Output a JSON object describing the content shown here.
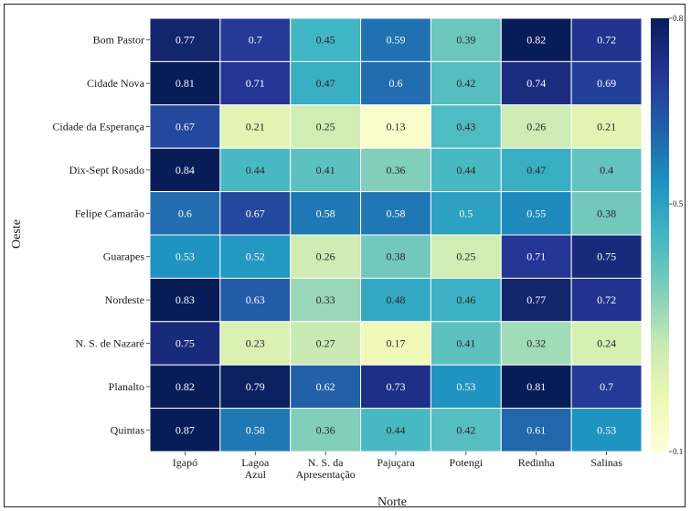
{
  "chart_data": {
    "type": "heatmap",
    "xlabel": "Norte",
    "ylabel": "Oeste",
    "columns": [
      "Igapó",
      "Lagoa Azul",
      "N. S. da Apresentação",
      "Pajuçara",
      "Potengi",
      "Redinha",
      "Salinas"
    ],
    "column_label_lines": [
      [
        "Igapó"
      ],
      [
        "Lagoa",
        "Azul"
      ],
      [
        "N. S. da",
        "Apresentação"
      ],
      [
        "Pajuçara"
      ],
      [
        "Potengi"
      ],
      [
        "Redinha"
      ],
      [
        "Salinas"
      ]
    ],
    "rows": [
      "Bom Pastor",
      "Cidade Nova",
      "Cidade da Esperança",
      "Dix-Sept Rosado",
      "Felipe Camarão",
      "Guarapes",
      "Nordeste",
      "N. S. de Nazaré",
      "Planalto",
      "Quintas"
    ],
    "values": [
      [
        "0.77",
        "0.7",
        "0.45",
        "0.59",
        "0.39",
        "0.82",
        "0.72"
      ],
      [
        "0.81",
        "0.71",
        "0.47",
        "0.6",
        "0.42",
        "0.74",
        "0.69"
      ],
      [
        "0.67",
        "0.21",
        "0.25",
        "0.13",
        "0.43",
        "0.26",
        "0.21"
      ],
      [
        "0.84",
        "0.44",
        "0.41",
        "0.36",
        "0.44",
        "0.47",
        "0.4"
      ],
      [
        "0.6",
        "0.67",
        "0.58",
        "0.58",
        "0.5",
        "0.55",
        "0.38"
      ],
      [
        "0.53",
        "0.52",
        "0.26",
        "0.38",
        "0.25",
        "0.71",
        "0.75"
      ],
      [
        "0.83",
        "0.63",
        "0.33",
        "0.48",
        "0.46",
        "0.77",
        "0.72"
      ],
      [
        "0.75",
        "0.23",
        "0.27",
        "0.17",
        "0.41",
        "0.32",
        "0.24"
      ],
      [
        "0.82",
        "0.79",
        "0.62",
        "0.73",
        "0.53",
        "0.81",
        "0.7"
      ],
      [
        "0.87",
        "0.58",
        "0.36",
        "0.44",
        "0.42",
        "0.61",
        "0.53"
      ]
    ],
    "colormap": "YlGnBu",
    "colorbar": {
      "min": 0.1,
      "max": 0.8,
      "ticks": [
        0.8,
        0.5,
        0.1
      ],
      "tick_labels": [
        "0.8",
        "0.5",
        "0.1"
      ]
    },
    "legend": "colorbar-right"
  }
}
